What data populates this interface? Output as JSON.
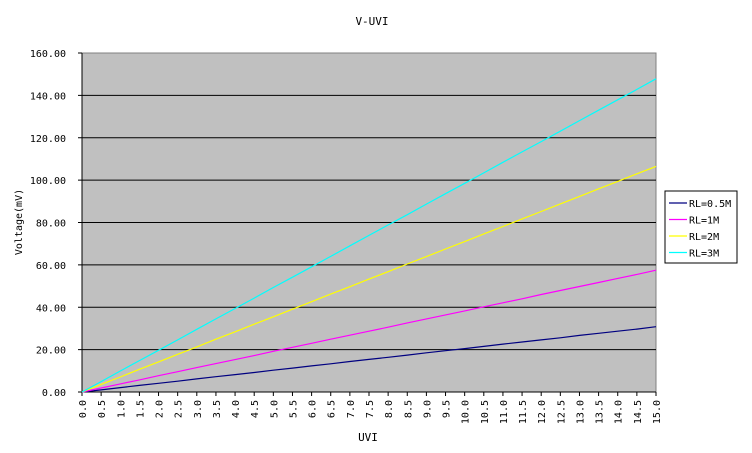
{
  "chart_data": {
    "type": "line",
    "title": "V-UVI",
    "xlabel": "UVI",
    "ylabel": "Voltage(mV)",
    "categories": [
      "0.0",
      "0.5",
      "1.0",
      "1.5",
      "2.0",
      "2.5",
      "3.0",
      "3.5",
      "4.0",
      "4.5",
      "5.0",
      "5.5",
      "6.0",
      "6.5",
      "7.0",
      "7.5",
      "8.0",
      "8.5",
      "9.0",
      "9.5",
      "10.0",
      "10.5",
      "11.0",
      "11.5",
      "12.0",
      "12.5",
      "13.0",
      "13.5",
      "14.0",
      "14.5",
      "15.0"
    ],
    "x": [
      0,
      0.5,
      1,
      1.5,
      2,
      2.5,
      3,
      3.5,
      4,
      4.5,
      5,
      5.5,
      6,
      6.5,
      7,
      7.5,
      8,
      8.5,
      9,
      9.5,
      10,
      10.5,
      11,
      11.5,
      12,
      12.5,
      13,
      13.5,
      14,
      14.5,
      15
    ],
    "xlim": [
      0,
      15
    ],
    "ylim": [
      0,
      160
    ],
    "yticks": [
      "0.00",
      "20.00",
      "40.00",
      "60.00",
      "80.00",
      "100.00",
      "120.00",
      "140.00",
      "160.00"
    ],
    "grid": true,
    "plot_background": "#c0c0c0",
    "legend_position": "right",
    "series": [
      {
        "name": "RL=0.5M",
        "color": "#000080",
        "slope": 2.05,
        "values": [
          0,
          1.0,
          2.1,
          3.1,
          4.1,
          5.1,
          6.2,
          7.2,
          8.2,
          9.2,
          10.3,
          11.3,
          12.3,
          13.3,
          14.4,
          15.4,
          16.4,
          17.4,
          18.5,
          19.5,
          20.5,
          21.5,
          22.6,
          23.6,
          24.6,
          25.6,
          26.7,
          27.7,
          28.7,
          29.7,
          30.8
        ]
      },
      {
        "name": "RL=1M",
        "color": "#ff00ff",
        "slope": 3.83,
        "values": [
          0,
          1.9,
          3.8,
          5.7,
          7.7,
          9.6,
          11.5,
          13.4,
          15.3,
          17.2,
          19.2,
          21.1,
          23.0,
          24.9,
          26.8,
          28.7,
          30.6,
          32.6,
          34.5,
          36.4,
          38.3,
          40.2,
          42.1,
          44.0,
          46.0,
          47.9,
          49.8,
          51.7,
          53.6,
          55.5,
          57.5
        ]
      },
      {
        "name": "RL=2M",
        "color": "#ffff00",
        "slope": 7.1,
        "values": [
          0,
          3.6,
          7.1,
          10.7,
          14.2,
          17.8,
          21.3,
          24.9,
          28.4,
          32.0,
          35.5,
          39.1,
          42.6,
          46.2,
          49.7,
          53.3,
          56.8,
          60.4,
          63.9,
          67.5,
          71.0,
          74.6,
          78.1,
          81.7,
          85.2,
          88.8,
          92.3,
          95.9,
          99.4,
          103.0,
          106.5
        ]
      },
      {
        "name": "RL=3M",
        "color": "#00ffff",
        "slope": 9.85,
        "values": [
          0,
          4.9,
          9.9,
          14.8,
          19.7,
          24.6,
          29.6,
          34.5,
          39.4,
          44.3,
          49.3,
          54.2,
          59.1,
          64.0,
          69.0,
          73.9,
          78.8,
          83.7,
          88.7,
          93.6,
          98.5,
          103.4,
          108.4,
          113.3,
          118.2,
          123.1,
          128.1,
          133.0,
          137.9,
          142.8,
          147.8
        ]
      }
    ]
  }
}
